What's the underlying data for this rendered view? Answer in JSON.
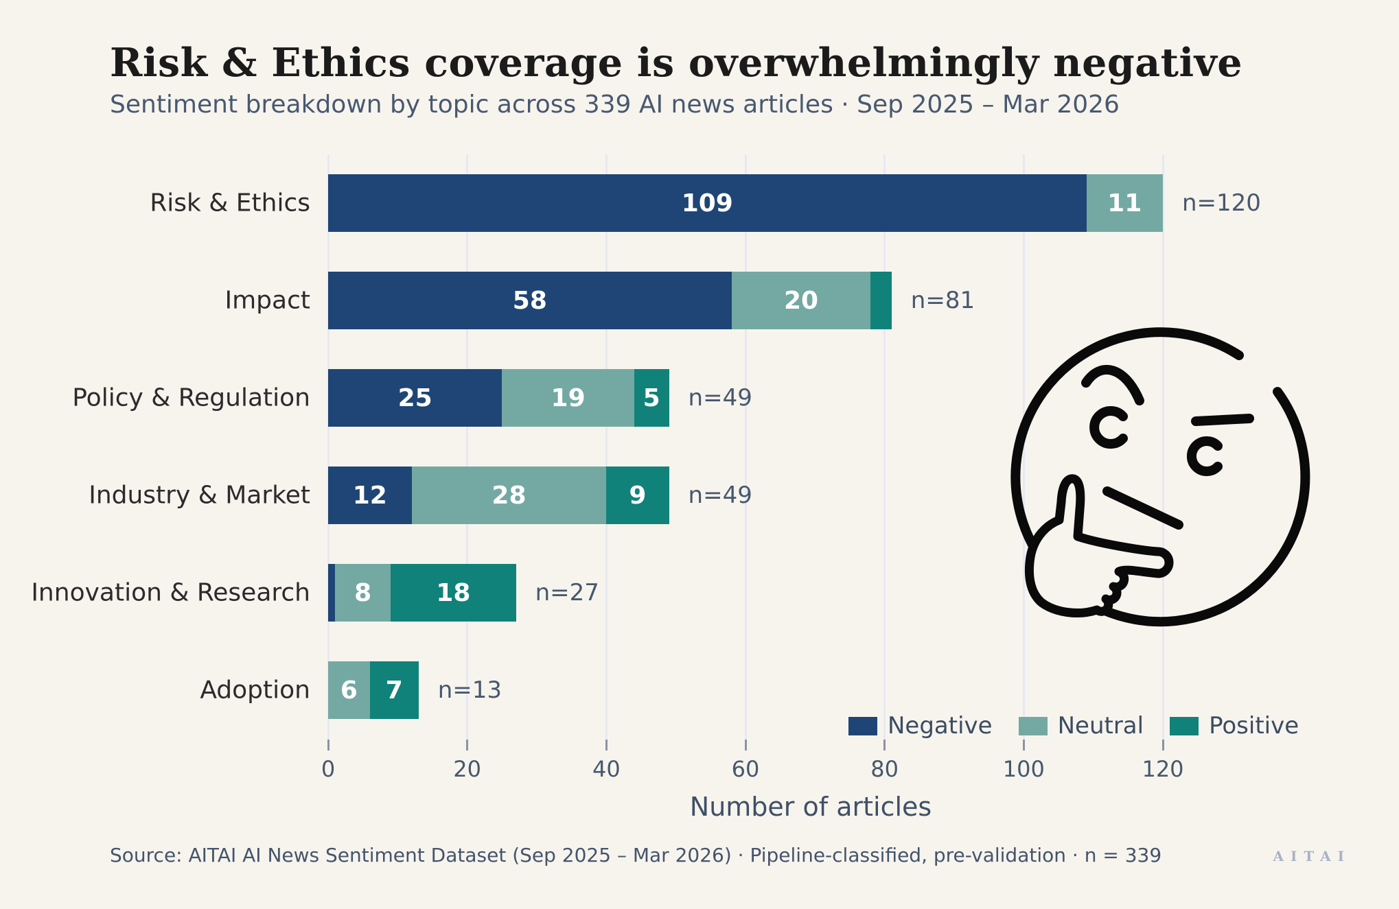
{
  "header": {
    "title": "Risk & Ethics coverage is overwhelmingly negative",
    "subtitle": "Sentiment breakdown by topic across 339 AI news articles  ·  Sep 2025 – Mar 2026"
  },
  "chart_data": {
    "type": "bar",
    "orientation": "horizontal_stacked",
    "title": "Risk & Ethics coverage is overwhelmingly negative",
    "subtitle": "Sentiment breakdown by topic across 339 AI news articles · Sep 2025 – Mar 2026",
    "categories": [
      "Risk & Ethics",
      "Impact",
      "Policy & Regulation",
      "Industry & Market",
      "Innovation & Research",
      "Adoption"
    ],
    "series": [
      {
        "name": "Negative",
        "color": "#1f4576",
        "values": [
          109,
          58,
          25,
          12,
          1,
          0
        ]
      },
      {
        "name": "Neutral",
        "color": "#73a9a2",
        "values": [
          11,
          20,
          19,
          28,
          8,
          6
        ]
      },
      {
        "name": "Positive",
        "color": "#10827a",
        "values": [
          0,
          3,
          5,
          9,
          18,
          7
        ]
      }
    ],
    "bar_total_labels": [
      "n=120",
      "n=81",
      "n=49",
      "n=49",
      "n=27",
      "n=13"
    ],
    "xlabel": "Number of articles",
    "xlim": [
      0,
      120
    ],
    "xticks": [
      0,
      20,
      40,
      60,
      80,
      100,
      120
    ],
    "grid": true,
    "legend_position": "lower right",
    "value_label_min": 5
  },
  "decoration": {
    "thinking_face_icon": "thinking-face line drawing"
  },
  "footer": {
    "source": "Source: AITAI AI News Sentiment Dataset (Sep 2025 – Mar 2026)  ·  Pipeline-classified, pre-validation  ·  n = 339",
    "logo": "AITAI"
  },
  "colors": {
    "background": "#f7f4ee",
    "gridline": "#e7e9f1",
    "negative": "#1f4576",
    "neutral": "#73a9a2",
    "positive": "#10827a",
    "slate_text": "#47586d",
    "title_text": "#1b1b1b"
  }
}
